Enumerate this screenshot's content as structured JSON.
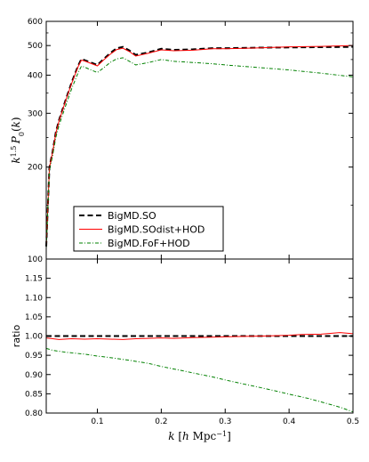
{
  "chart_data": [
    {
      "type": "line",
      "title": "",
      "xlabel": "",
      "ylabel": "k^{1.5} P_0(k)",
      "yscale": "log",
      "xlim": [
        0.02,
        0.5
      ],
      "ylim": [
        100,
        600
      ],
      "y_ticks": [
        100,
        200,
        300,
        400,
        500,
        600
      ],
      "legend_position": "lower-left",
      "series": [
        {
          "name": "BigMD.SO",
          "style": "dashed",
          "color": "#000000",
          "x": [
            0.02,
            0.025,
            0.03,
            0.035,
            0.04,
            0.05,
            0.06,
            0.07,
            0.075,
            0.08,
            0.09,
            0.1,
            0.11,
            0.12,
            0.13,
            0.14,
            0.15,
            0.16,
            0.18,
            0.2,
            0.22,
            0.25,
            0.28,
            0.3,
            0.35,
            0.4,
            0.45,
            0.5
          ],
          "y": [
            110,
            200,
            225,
            260,
            285,
            330,
            380,
            430,
            452,
            448,
            440,
            432,
            452,
            472,
            490,
            495,
            482,
            466,
            475,
            488,
            484,
            486,
            490,
            490,
            492,
            493,
            494,
            495
          ]
        },
        {
          "name": "BigMD.SOdist+HOD",
          "style": "solid",
          "color": "#ff0000",
          "x": [
            0.02,
            0.025,
            0.03,
            0.035,
            0.04,
            0.05,
            0.06,
            0.07,
            0.075,
            0.08,
            0.09,
            0.1,
            0.11,
            0.12,
            0.13,
            0.14,
            0.15,
            0.16,
            0.18,
            0.2,
            0.22,
            0.25,
            0.28,
            0.3,
            0.35,
            0.4,
            0.45,
            0.5
          ],
          "y": [
            110,
            199,
            224,
            258,
            283,
            328,
            377,
            427,
            448,
            445,
            437,
            429,
            449,
            468,
            485,
            490,
            478,
            462,
            472,
            484,
            481,
            483,
            488,
            488,
            491,
            495,
            497,
            500
          ]
        },
        {
          "name": "BigMD.FoF+HOD",
          "style": "dashdot",
          "color": "#008000",
          "x": [
            0.02,
            0.025,
            0.03,
            0.035,
            0.04,
            0.05,
            0.06,
            0.07,
            0.075,
            0.08,
            0.09,
            0.1,
            0.11,
            0.12,
            0.13,
            0.14,
            0.15,
            0.16,
            0.18,
            0.2,
            0.22,
            0.25,
            0.28,
            0.3,
            0.35,
            0.4,
            0.45,
            0.5
          ],
          "y": [
            108,
            195,
            218,
            250,
            274,
            316,
            362,
            408,
            428,
            425,
            416,
            408,
            423,
            440,
            452,
            456,
            444,
            432,
            440,
            450,
            444,
            440,
            436,
            432,
            424,
            416,
            406,
            395
          ]
        }
      ]
    },
    {
      "type": "line",
      "title": "",
      "xlabel": "k [h Mpc^{-1}]",
      "ylabel": "ratio",
      "xlim": [
        0.02,
        0.5
      ],
      "ylim": [
        0.8,
        1.2
      ],
      "x_ticks": [
        0.1,
        0.2,
        0.3,
        0.4,
        0.5
      ],
      "x_tick_labels": [
        "0.1",
        "0.2",
        "0.3",
        "0.4",
        "0.5"
      ],
      "y_ticks": [
        0.8,
        0.85,
        0.9,
        0.95,
        1.0,
        1.05,
        1.1,
        1.15
      ],
      "y_tick_labels": [
        "0.80",
        "0.85",
        "0.90",
        "0.95",
        "1.00",
        "1.05",
        "1.10",
        "1.15"
      ],
      "series": [
        {
          "name": "BigMD.SO",
          "style": "dashed",
          "color": "#000000",
          "x": [
            0.02,
            0.5
          ],
          "y": [
            1.0,
            1.0
          ]
        },
        {
          "name": "BigMD.SOdist+HOD",
          "style": "solid",
          "color": "#ff0000",
          "x": [
            0.02,
            0.04,
            0.06,
            0.08,
            0.1,
            0.12,
            0.14,
            0.16,
            0.18,
            0.2,
            0.22,
            0.25,
            0.28,
            0.3,
            0.33,
            0.36,
            0.4,
            0.42,
            0.45,
            0.48,
            0.5
          ],
          "y": [
            0.995,
            0.991,
            0.993,
            0.992,
            0.993,
            0.992,
            0.991,
            0.993,
            0.994,
            0.995,
            0.994,
            0.996,
            0.997,
            0.998,
            0.999,
            1.0,
            1.002,
            1.004,
            1.005,
            1.009,
            1.006
          ]
        },
        {
          "name": "BigMD.FoF+HOD",
          "style": "dashdot",
          "color": "#008000",
          "x": [
            0.02,
            0.03,
            0.05,
            0.08,
            0.1,
            0.12,
            0.15,
            0.18,
            0.2,
            0.23,
            0.25,
            0.28,
            0.3,
            0.33,
            0.35,
            0.38,
            0.4,
            0.43,
            0.45,
            0.48,
            0.5
          ],
          "y": [
            0.968,
            0.963,
            0.958,
            0.953,
            0.948,
            0.944,
            0.937,
            0.929,
            0.921,
            0.911,
            0.904,
            0.894,
            0.886,
            0.875,
            0.868,
            0.857,
            0.849,
            0.838,
            0.829,
            0.815,
            0.803
          ]
        }
      ]
    }
  ]
}
